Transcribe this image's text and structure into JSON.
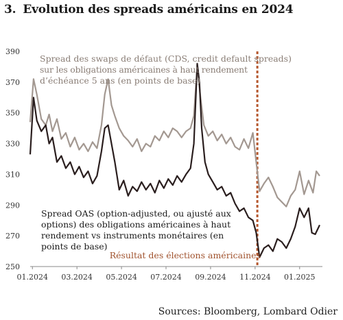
{
  "header": {
    "number": "3.",
    "title": "Evolution des spreads américains en 2024"
  },
  "source": "Sources: Bloomberg, Lombard Odier",
  "colors": {
    "cds": "#a39891",
    "oas": "#2a1e1e",
    "election": "#b5582f",
    "axis": "#888888"
  },
  "annotations": {
    "cds": [
      "Spread des swaps de défaut (CDS, credit default spreads)",
      "sur les obligations américaines à haut rendement",
      "d’échéance 5 ans (en points de base)"
    ],
    "oas": [
      "Spread OAS (option-adjusted, ou ajusté aux",
      "options) des obligations américaines à haut",
      "rendement vs instruments monétaires (en",
      "points de base)"
    ],
    "election": "Résultat des élections américaines"
  },
  "chart_data": {
    "type": "line",
    "x_tick_labels": [
      "01.2024",
      "03.2024",
      "05.2024",
      "07.2024",
      "09.2024",
      "11.2024",
      "01.2025"
    ],
    "y_ticks": [
      250,
      270,
      290,
      310,
      330,
      350,
      370,
      390
    ],
    "ylim": [
      250,
      390
    ],
    "xlim": [
      0,
      13
    ],
    "grid": false,
    "event": {
      "label": "Résultat des élections américaines",
      "x": 10.2
    },
    "series": [
      {
        "key": "cds",
        "points": [
          [
            0,
            344
          ],
          [
            0.15,
            372
          ],
          [
            0.3,
            362
          ],
          [
            0.5,
            346
          ],
          [
            0.7,
            342
          ],
          [
            0.85,
            349
          ],
          [
            1.0,
            338
          ],
          [
            1.2,
            346
          ],
          [
            1.4,
            333
          ],
          [
            1.6,
            337
          ],
          [
            1.8,
            328
          ],
          [
            2.0,
            334
          ],
          [
            2.2,
            326
          ],
          [
            2.4,
            330
          ],
          [
            2.6,
            325
          ],
          [
            2.8,
            331
          ],
          [
            3.0,
            327
          ],
          [
            3.2,
            342
          ],
          [
            3.35,
            362
          ],
          [
            3.5,
            372
          ],
          [
            3.65,
            355
          ],
          [
            3.8,
            348
          ],
          [
            4.0,
            340
          ],
          [
            4.2,
            335
          ],
          [
            4.4,
            332
          ],
          [
            4.6,
            328
          ],
          [
            4.8,
            333
          ],
          [
            5.0,
            325
          ],
          [
            5.2,
            330
          ],
          [
            5.4,
            328
          ],
          [
            5.6,
            335
          ],
          [
            5.8,
            332
          ],
          [
            6.0,
            338
          ],
          [
            6.2,
            334
          ],
          [
            6.4,
            340
          ],
          [
            6.6,
            338
          ],
          [
            6.8,
            334
          ],
          [
            7.0,
            338
          ],
          [
            7.2,
            340
          ],
          [
            7.35,
            348
          ],
          [
            7.5,
            380
          ],
          [
            7.65,
            360
          ],
          [
            7.8,
            342
          ],
          [
            8.0,
            335
          ],
          [
            8.2,
            338
          ],
          [
            8.4,
            332
          ],
          [
            8.6,
            336
          ],
          [
            8.8,
            330
          ],
          [
            9.0,
            334
          ],
          [
            9.2,
            328
          ],
          [
            9.4,
            326
          ],
          [
            9.6,
            333
          ],
          [
            9.8,
            327
          ],
          [
            10.0,
            337
          ],
          [
            10.15,
            318
          ],
          [
            10.3,
            299
          ],
          [
            10.5,
            304
          ],
          [
            10.7,
            308
          ],
          [
            10.9,
            302
          ],
          [
            11.1,
            295
          ],
          [
            11.3,
            292
          ],
          [
            11.5,
            289
          ],
          [
            11.7,
            296
          ],
          [
            11.9,
            300
          ],
          [
            12.1,
            312
          ],
          [
            12.3,
            297
          ],
          [
            12.5,
            306
          ],
          [
            12.7,
            298
          ],
          [
            12.85,
            312
          ],
          [
            13.0,
            309
          ]
        ]
      },
      {
        "key": "oas",
        "points": [
          [
            0,
            323
          ],
          [
            0.15,
            360
          ],
          [
            0.3,
            345
          ],
          [
            0.5,
            338
          ],
          [
            0.7,
            342
          ],
          [
            0.85,
            330
          ],
          [
            1.0,
            334
          ],
          [
            1.2,
            318
          ],
          [
            1.4,
            322
          ],
          [
            1.6,
            314
          ],
          [
            1.8,
            318
          ],
          [
            2.0,
            310
          ],
          [
            2.2,
            315
          ],
          [
            2.4,
            308
          ],
          [
            2.6,
            312
          ],
          [
            2.8,
            304
          ],
          [
            3.0,
            309
          ],
          [
            3.2,
            325
          ],
          [
            3.35,
            340
          ],
          [
            3.5,
            342
          ],
          [
            3.65,
            330
          ],
          [
            3.8,
            318
          ],
          [
            4.0,
            300
          ],
          [
            4.2,
            306
          ],
          [
            4.4,
            296
          ],
          [
            4.6,
            302
          ],
          [
            4.8,
            299
          ],
          [
            5.0,
            305
          ],
          [
            5.2,
            300
          ],
          [
            5.4,
            304
          ],
          [
            5.6,
            298
          ],
          [
            5.8,
            306
          ],
          [
            6.0,
            301
          ],
          [
            6.2,
            307
          ],
          [
            6.4,
            303
          ],
          [
            6.6,
            309
          ],
          [
            6.8,
            305
          ],
          [
            7.0,
            310
          ],
          [
            7.2,
            314
          ],
          [
            7.35,
            330
          ],
          [
            7.5,
            382
          ],
          [
            7.6,
            370
          ],
          [
            7.7,
            340
          ],
          [
            7.85,
            318
          ],
          [
            8.0,
            310
          ],
          [
            8.2,
            305
          ],
          [
            8.4,
            300
          ],
          [
            8.6,
            302
          ],
          [
            8.8,
            296
          ],
          [
            9.0,
            298
          ],
          [
            9.2,
            291
          ],
          [
            9.4,
            286
          ],
          [
            9.6,
            288
          ],
          [
            9.8,
            282
          ],
          [
            10.0,
            280
          ],
          [
            10.15,
            272
          ],
          [
            10.3,
            256
          ],
          [
            10.5,
            262
          ],
          [
            10.7,
            264
          ],
          [
            10.9,
            260
          ],
          [
            11.1,
            268
          ],
          [
            11.3,
            266
          ],
          [
            11.5,
            262
          ],
          [
            11.7,
            268
          ],
          [
            11.9,
            276
          ],
          [
            12.1,
            288
          ],
          [
            12.3,
            282
          ],
          [
            12.5,
            288
          ],
          [
            12.65,
            272
          ],
          [
            12.8,
            271
          ],
          [
            13.0,
            277
          ]
        ]
      }
    ]
  }
}
